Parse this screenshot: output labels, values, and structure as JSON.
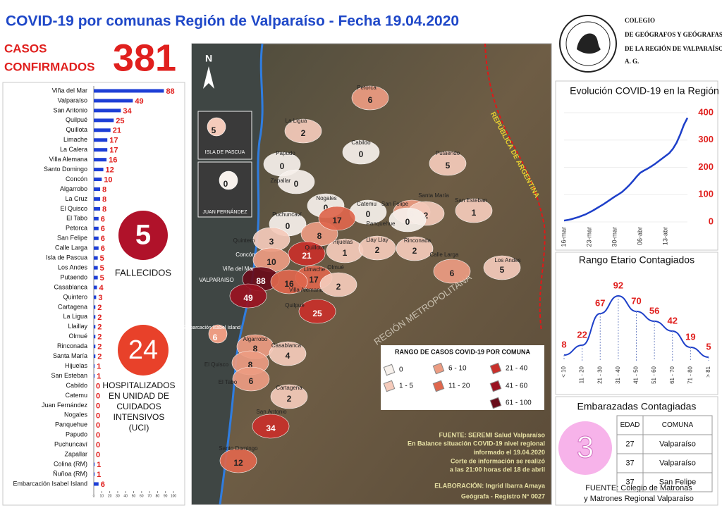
{
  "header": {
    "title": "COVID-19 por comunas Región de Valparaíso - Fecha 19.04.2020",
    "cases_label": [
      "CASOS",
      "CONFIRMADOS"
    ],
    "cases": "381",
    "deaths": "5",
    "deaths_label": "FALLECIDOS",
    "icu": "24",
    "icu_label": [
      "HOSPITALIZADOS",
      "EN UNIDAD DE",
      "CUIDADOS",
      "INTENSIVOS",
      "(UCI)"
    ],
    "org": [
      "COLEGIO",
      "DE GEÓGRAFOS Y GEÓGRAFAS",
      "DE LA REGIÓN DE VALPARAÍSO",
      "A. G."
    ]
  },
  "chart_data": [
    {
      "type": "barh",
      "categories": [
        "Viña del Mar",
        "Valparaíso",
        "San Antonio",
        "Quilpué",
        "Quillota",
        "Limache",
        "La Calera",
        "Villa Alemana",
        "Santo Domingo",
        "Concón",
        "Algarrobo",
        "La Cruz",
        "El Quisco",
        "El Tabo",
        "Petorca",
        "San Felipe",
        "Calle Larga",
        "Isla de Pascua",
        "Los Andes",
        "Putaendo",
        "Casablanca",
        "Quintero",
        "Cartagena",
        "La Ligua",
        "Llaillay",
        "Olmué",
        "Rinconada",
        "Santa María",
        "Hijuelas",
        "San Esteban",
        "Cabildo",
        "Catemu",
        "Juan Fernández",
        "Nogales",
        "Panquehue",
        "Papudo",
        "Puchuncaví",
        "Zapallar",
        "Colina (RM)",
        "Ñuñoa (RM)",
        "Embarcación Isabel Island"
      ],
      "values": [
        88,
        49,
        34,
        25,
        21,
        17,
        17,
        16,
        12,
        10,
        8,
        8,
        8,
        6,
        6,
        6,
        6,
        5,
        5,
        5,
        4,
        3,
        2,
        2,
        2,
        2,
        2,
        2,
        1,
        1,
        0,
        0,
        0,
        0,
        0,
        0,
        0,
        0,
        1,
        1,
        6
      ],
      "color": "#1e3fd6",
      "label_color": "#e0201e",
      "xlim": [
        0,
        100
      ],
      "xticks": [
        0,
        10,
        20,
        30,
        40,
        50,
        60,
        70,
        80,
        90,
        100
      ]
    },
    {
      "type": "line",
      "title": "Evolución COVID-19 en la Región",
      "x": [
        "16-mar",
        "17-mar",
        "18-mar",
        "19-mar",
        "20-mar",
        "21-mar",
        "22-mar",
        "23-mar",
        "24-mar",
        "25-mar",
        "26-mar",
        "27-mar",
        "28-mar",
        "29-mar",
        "30-mar",
        "31-mar",
        "01-abr",
        "02-abr",
        "03-abr",
        "04-abr",
        "05-abr",
        "06-abr",
        "07-abr",
        "08-abr",
        "09-abr",
        "10-abr",
        "11-abr",
        "12-abr",
        "13-abr",
        "14-abr",
        "15-abr",
        "16-abr",
        "17-abr",
        "18-abr",
        "19-abr"
      ],
      "series": [
        {
          "color": "#1d3fc9",
          "values": [
            5,
            7,
            10,
            14,
            18,
            23,
            28,
            35,
            42,
            50,
            58,
            66,
            75,
            84,
            93,
            101,
            110,
            122,
            135,
            150,
            166,
            180,
            188,
            195,
            203,
            212,
            222,
            232,
            242,
            252,
            268,
            290,
            320,
            355,
            381
          ]
        }
      ],
      "xticks": [
        "16-mar",
        "23-mar",
        "30-mar",
        "06-abr",
        "13-abr"
      ],
      "ylim": [
        0,
        400
      ],
      "yticks": [
        0,
        100,
        200,
        300,
        400
      ]
    },
    {
      "type": "line",
      "title": "Rango Etario Contagiados",
      "categories": [
        "< 10",
        "11 - 20",
        "21 - 30",
        "31 - 40",
        "41 - 50",
        "51 - 60",
        "61 - 70",
        "71 - 80",
        "> 81"
      ],
      "series": [
        {
          "color": "#1d3fc9",
          "values": [
            8,
            22,
            67,
            92,
            70,
            56,
            42,
            19,
            5
          ]
        }
      ],
      "label_color": "#e0201e"
    }
  ],
  "pregnant": {
    "title": "Embarazadas Contagiadas",
    "count": "3",
    "table": {
      "header": [
        "EDAD",
        "COMUNA"
      ],
      "rows": [
        [
          "27",
          "Valparaíso"
        ],
        [
          "37",
          "Valparaíso"
        ],
        [
          "37",
          "San Felipe"
        ]
      ]
    },
    "source": [
      "FUENTE: Colegio de Matronas",
      "y Matrones Regional Valparaíso"
    ]
  },
  "map": {
    "comunas": [
      {
        "name": "Petorca",
        "value": 6
      },
      {
        "name": "La Ligua",
        "value": 2
      },
      {
        "name": "Cabildo",
        "value": 0
      },
      {
        "name": "Papudo",
        "value": 0
      },
      {
        "name": "Zapallar",
        "value": 0
      },
      {
        "name": "Nogales",
        "value": 0
      },
      {
        "name": "Putaendo",
        "value": 5
      },
      {
        "name": "Catemu",
        "value": 0
      },
      {
        "name": "San Felipe",
        "value": 6
      },
      {
        "name": "Santa María",
        "value": 2
      },
      {
        "name": "San Esteban",
        "value": 1
      },
      {
        "name": "Puchuncaví",
        "value": 0
      },
      {
        "name": "Panquehue",
        "value": 0
      },
      {
        "name": "Hijuelas",
        "value": 1
      },
      {
        "name": "Llay Llay",
        "value": 2
      },
      {
        "name": "Rinconada",
        "value": 2
      },
      {
        "name": "Quintero",
        "value": 3
      },
      {
        "name": null,
        "value": 8
      },
      {
        "name": null,
        "value": 17
      },
      {
        "name": "Quillota",
        "value": 21
      },
      {
        "name": "Concón",
        "value": 10
      },
      {
        "name": "Viña del Mar",
        "value": 88
      },
      {
        "name": "VALPARAISO",
        "value": 49
      },
      {
        "name": "Limache",
        "value": 17
      },
      {
        "name": "Villa Alemana",
        "value": 16
      },
      {
        "name": "Quilpué",
        "value": 25
      },
      {
        "name": "Olmué",
        "value": 2
      },
      {
        "name": "Calle Larga",
        "value": 6
      },
      {
        "name": "Los Andes",
        "value": 5
      },
      {
        "name": "Algarrobo",
        "value": 8
      },
      {
        "name": "Casablanca",
        "value": 4
      },
      {
        "name": "El Quisco",
        "value": 8
      },
      {
        "name": "El Tabo",
        "value": 6
      },
      {
        "name": "Cartagena",
        "value": 2
      },
      {
        "name": "San Antonio",
        "value": 34
      },
      {
        "name": "Santo Domingo",
        "value": 12
      },
      {
        "name": "ISLA DE PASCUA",
        "value": 5
      },
      {
        "name": "JUAN FERNÁNDEZ",
        "value": 0
      },
      {
        "name": "Embarcación Isabel Island",
        "value": 6
      }
    ],
    "legend": {
      "title": "RANGO DE CASOS COVID-19 POR COMUNA",
      "ranges": [
        {
          "label": "0",
          "color": "#f7f1ec"
        },
        {
          "label": "1 - 5",
          "color": "#f5cbbb"
        },
        {
          "label": "6 - 10",
          "color": "#ec9c82"
        },
        {
          "label": "11 - 20",
          "color": "#df674d"
        },
        {
          "label": "21 - 40",
          "color": "#c8302b"
        },
        {
          "label": "41 - 60",
          "color": "#9a1322"
        },
        {
          "label": "61 - 100",
          "color": "#690c1a"
        }
      ]
    },
    "north": "N",
    "region_labels": [
      "REGIÓN METROPOLITANA",
      "REPÚBLICA DE ARGENTINA"
    ],
    "source": [
      "FUENTE: SEREMI Salud Valparaíso",
      "En Balance situación COVID-19 nivel regional",
      "informado el 19.04.2020",
      "Corte de información se realizó",
      "a las 21:00 horas del 18 de abril"
    ],
    "credit": [
      "ELABORACIÓN: Ingrid Ibarra Amaya",
      "Geógrafa - Registro N° 0027"
    ]
  }
}
